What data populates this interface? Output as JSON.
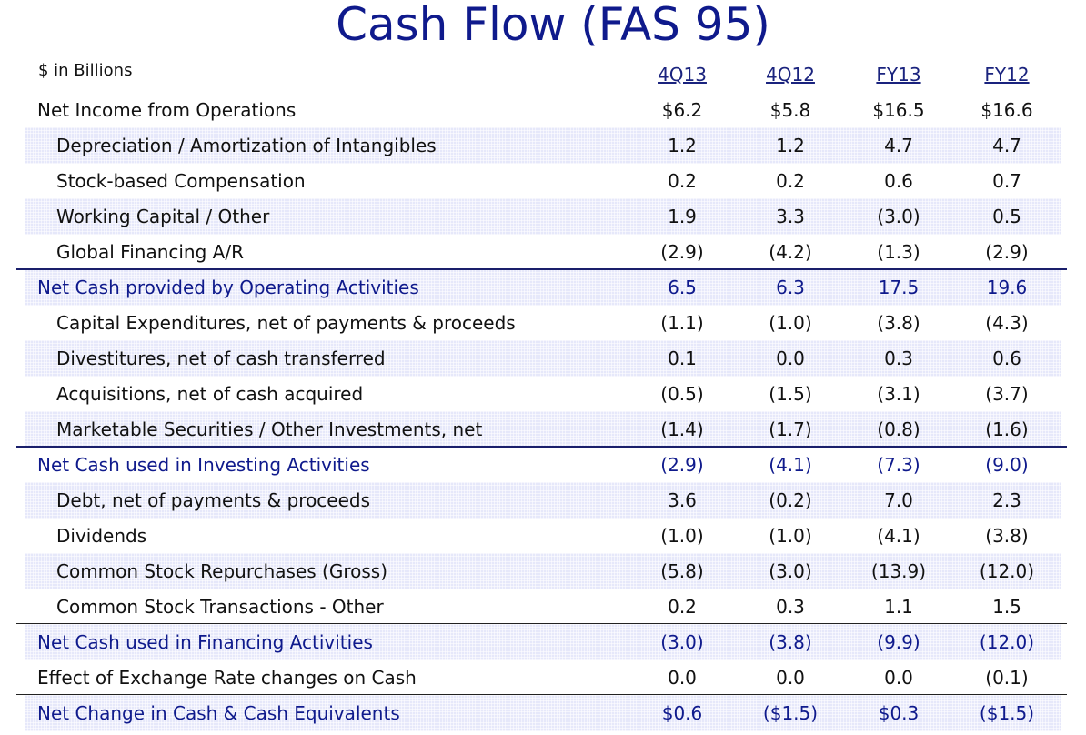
{
  "title": "Cash Flow (FAS 95)",
  "units": "$ in Billions",
  "columns": [
    "4Q13",
    "4Q12",
    "FY13",
    "FY12"
  ],
  "rows": [
    {
      "label": "Net Income from Operations",
      "values": [
        "$6.2",
        "$5.8",
        "$16.5",
        "$16.6"
      ],
      "kind": "main",
      "shaded": false
    },
    {
      "label": "Depreciation / Amortization of Intangibles",
      "values": [
        "1.2",
        "1.2",
        "4.7",
        "4.7"
      ],
      "kind": "sub",
      "shaded": true
    },
    {
      "label": "Stock-based Compensation",
      "values": [
        "0.2",
        "0.2",
        "0.6",
        "0.7"
      ],
      "kind": "sub",
      "shaded": false
    },
    {
      "label": "Working Capital / Other",
      "values": [
        "1.9",
        "3.3",
        "(3.0)",
        "0.5"
      ],
      "kind": "sub",
      "shaded": true
    },
    {
      "label": "Global Financing  A/R",
      "values": [
        "(2.9)",
        "(4.2)",
        "(1.3)",
        "(2.9)"
      ],
      "kind": "sub",
      "shaded": false
    },
    {
      "label": "Net Cash provided by Operating Activities",
      "values": [
        "6.5",
        "6.3",
        "17.5",
        "19.6"
      ],
      "kind": "total",
      "shaded": true
    },
    {
      "label": "Capital Expenditures, net of payments & proceeds",
      "values": [
        "(1.1)",
        "(1.0)",
        "(3.8)",
        "(4.3)"
      ],
      "kind": "sub",
      "shaded": false
    },
    {
      "label": "Divestitures, net of cash transferred",
      "values": [
        "0.1",
        "0.0",
        "0.3",
        "0.6"
      ],
      "kind": "sub",
      "shaded": true
    },
    {
      "label": "Acquisitions, net of cash acquired",
      "values": [
        "(0.5)",
        "(1.5)",
        "(3.1)",
        "(3.7)"
      ],
      "kind": "sub",
      "shaded": false
    },
    {
      "label": "Marketable Securities / Other Investments, net",
      "values": [
        "(1.4)",
        "(1.7)",
        "(0.8)",
        "(1.6)"
      ],
      "kind": "sub",
      "shaded": true
    },
    {
      "label": "Net Cash used in Investing Activities",
      "values": [
        "(2.9)",
        "(4.1)",
        "(7.3)",
        "(9.0)"
      ],
      "kind": "total",
      "shaded": false
    },
    {
      "label": "Debt, net of payments & proceeds",
      "values": [
        "3.6",
        "(0.2)",
        "7.0",
        "2.3"
      ],
      "kind": "sub",
      "shaded": true
    },
    {
      "label": "Dividends",
      "values": [
        "(1.0)",
        "(1.0)",
        "(4.1)",
        "(3.8)"
      ],
      "kind": "sub",
      "shaded": false
    },
    {
      "label": "Common Stock Repurchases (Gross)",
      "values": [
        "(5.8)",
        "(3.0)",
        "(13.9)",
        "(12.0)"
      ],
      "kind": "sub",
      "shaded": true
    },
    {
      "label": "Common Stock Transactions - Other",
      "values": [
        "0.2",
        "0.3",
        "1.1",
        "1.5"
      ],
      "kind": "sub",
      "shaded": false
    },
    {
      "label": "Net Cash used in Financing Activities",
      "values": [
        "(3.0)",
        "(3.8)",
        "(9.9)",
        "(12.0)"
      ],
      "kind": "total",
      "shaded": true
    },
    {
      "label": "Effect of Exchange Rate changes on Cash",
      "values": [
        "0.0",
        "0.0",
        "0.0",
        "(0.1)"
      ],
      "kind": "main",
      "shaded": false
    },
    {
      "label": "Net Change in Cash & Cash Equivalents",
      "values": [
        "$0.6",
        "($1.5)",
        "$0.3",
        "($1.5)"
      ],
      "kind": "total",
      "shaded": true
    }
  ]
}
